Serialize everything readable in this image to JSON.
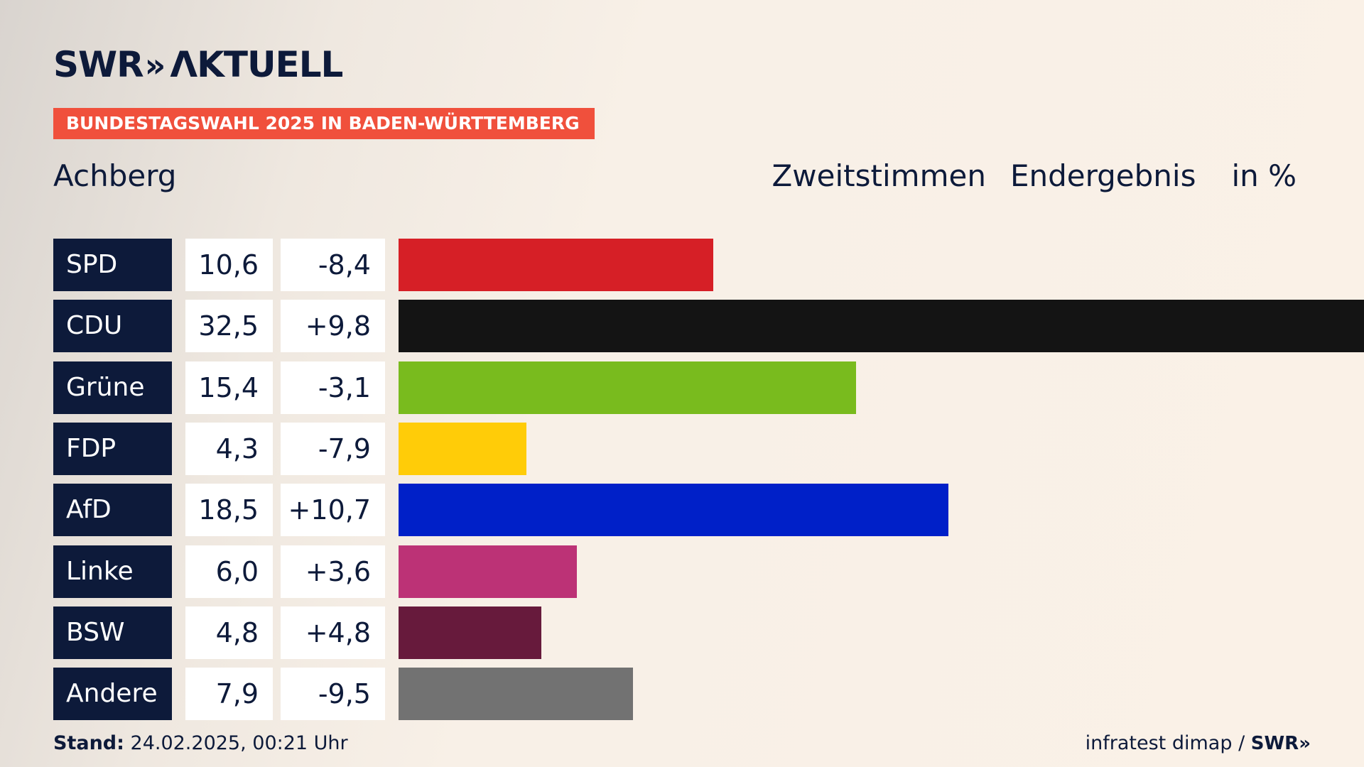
{
  "header": {
    "logo_text": "SWR",
    "logo_chevrons": "»",
    "logo_suffix": "ΛKTUELL",
    "tag": "BUNDESTAGSWAHL 2025 IN BADEN-WÜRTTEMBERG",
    "place": "Achberg",
    "vote_type": "Zweitstimmen",
    "result_type": "Endergebnis",
    "unit": "in %"
  },
  "chart_data": {
    "type": "bar",
    "orientation": "horizontal",
    "categories": [
      "SPD",
      "CDU",
      "Grüne",
      "FDP",
      "AfD",
      "Linke",
      "BSW",
      "Andere"
    ],
    "values": [
      10.6,
      32.5,
      15.4,
      4.3,
      18.5,
      6.0,
      4.8,
      7.9
    ],
    "value_labels": [
      "10,6",
      "32,5",
      "15,4",
      "4,3",
      "18,5",
      "6,0",
      "4,8",
      "7,9"
    ],
    "changes": [
      "-8,4",
      "+9,8",
      "-3,1",
      "-7,9",
      "+10,7",
      "+3,6",
      "+4,8",
      "-9,5"
    ],
    "colors": [
      "#d61f26",
      "#141414",
      "#79bb1e",
      "#ffcc08",
      "#0020c8",
      "#bc3276",
      "#671a3c",
      "#727272"
    ],
    "xlim": [
      0,
      32.5
    ]
  },
  "footer": {
    "stand_label": "Stand:",
    "stand_value": "24.02.2025, 00:21 Uhr",
    "source": "infratest dimap /",
    "source_logo": "SWR»"
  }
}
